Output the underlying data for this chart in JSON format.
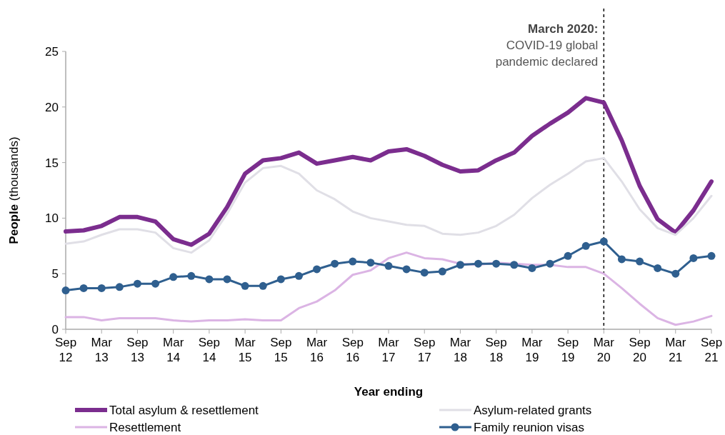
{
  "chart_data": {
    "type": "line",
    "xlabel": "Year ending",
    "ylabel": "People (thousands)",
    "categories": [
      "Sep 12",
      null,
      "Mar 13",
      null,
      "Sep 13",
      null,
      "Mar 14",
      null,
      "Sep 14",
      null,
      "Mar 15",
      null,
      "Sep 15",
      null,
      "Mar 16",
      null,
      "Sep 16",
      null,
      "Mar 17",
      null,
      "Sep 17",
      null,
      "Mar 18",
      null,
      "Sep 18",
      null,
      "Mar 19",
      null,
      "Sep 19",
      null,
      "Mar 20",
      null,
      "Sep 20",
      null,
      "Mar 21",
      null,
      "Sep 21"
    ],
    "series": [
      {
        "name": "Total asylum & resettlement",
        "color": "#7b2d8e",
        "marker": "none",
        "values": [
          8.8,
          8.9,
          9.3,
          10.1,
          10.1,
          9.7,
          8.1,
          7.6,
          8.6,
          11.0,
          14.0,
          15.2,
          15.4,
          15.9,
          14.9,
          15.2,
          15.5,
          15.2,
          16.0,
          16.2,
          15.6,
          14.8,
          14.2,
          14.3,
          15.2,
          15.9,
          17.4,
          18.5,
          19.5,
          20.8,
          20.4,
          17.0,
          12.9,
          9.9,
          8.7,
          10.7,
          13.3
        ]
      },
      {
        "name": "Asylum-related grants",
        "color": "#e0dfe6",
        "marker": "none",
        "values": [
          7.7,
          7.9,
          8.5,
          9.0,
          9.0,
          8.7,
          7.3,
          6.9,
          8.0,
          10.4,
          13.2,
          14.5,
          14.7,
          14.0,
          12.5,
          11.7,
          10.6,
          10.0,
          9.7,
          9.4,
          9.3,
          8.6,
          8.5,
          8.7,
          9.3,
          10.3,
          11.8,
          13.0,
          14.0,
          15.1,
          15.4,
          13.3,
          10.8,
          9.1,
          8.5,
          10.0,
          12.0
        ]
      },
      {
        "name": "Resettlement",
        "color": "#dbb4e4",
        "marker": "none",
        "values": [
          1.1,
          1.1,
          0.8,
          1.0,
          1.0,
          1.0,
          0.8,
          0.7,
          0.8,
          0.8,
          0.9,
          0.8,
          0.8,
          1.9,
          2.5,
          3.5,
          4.9,
          5.3,
          6.4,
          6.9,
          6.4,
          6.3,
          5.9,
          5.8,
          6.0,
          5.9,
          5.8,
          5.8,
          5.6,
          5.6,
          5.0,
          3.7,
          2.3,
          1.0,
          0.4,
          0.7,
          1.2
        ]
      },
      {
        "name": "Family reunion visas",
        "color": "#2f5f8f",
        "marker": "circle",
        "values": [
          3.5,
          3.7,
          3.7,
          3.8,
          4.1,
          4.1,
          4.7,
          4.8,
          4.5,
          4.5,
          3.9,
          3.9,
          4.5,
          4.8,
          5.4,
          5.9,
          6.1,
          6.0,
          5.7,
          5.4,
          5.1,
          5.2,
          5.8,
          5.9,
          5.9,
          5.8,
          5.5,
          5.9,
          6.6,
          7.5,
          7.9,
          6.3,
          6.1,
          5.5,
          5.0,
          6.4,
          6.6
        ]
      }
    ],
    "ylim": [
      0,
      25
    ],
    "yticks": [
      0,
      5,
      10,
      15,
      20,
      25
    ],
    "grid": false,
    "legend": "bottom",
    "line_style": "solid",
    "ref_lines": [
      {
        "axis": "x",
        "value": "Mar 20",
        "label": "March 2020:\nCOVID-19 global\npandemic declared",
        "color": "#000000",
        "line_style": "dashed"
      }
    ]
  }
}
